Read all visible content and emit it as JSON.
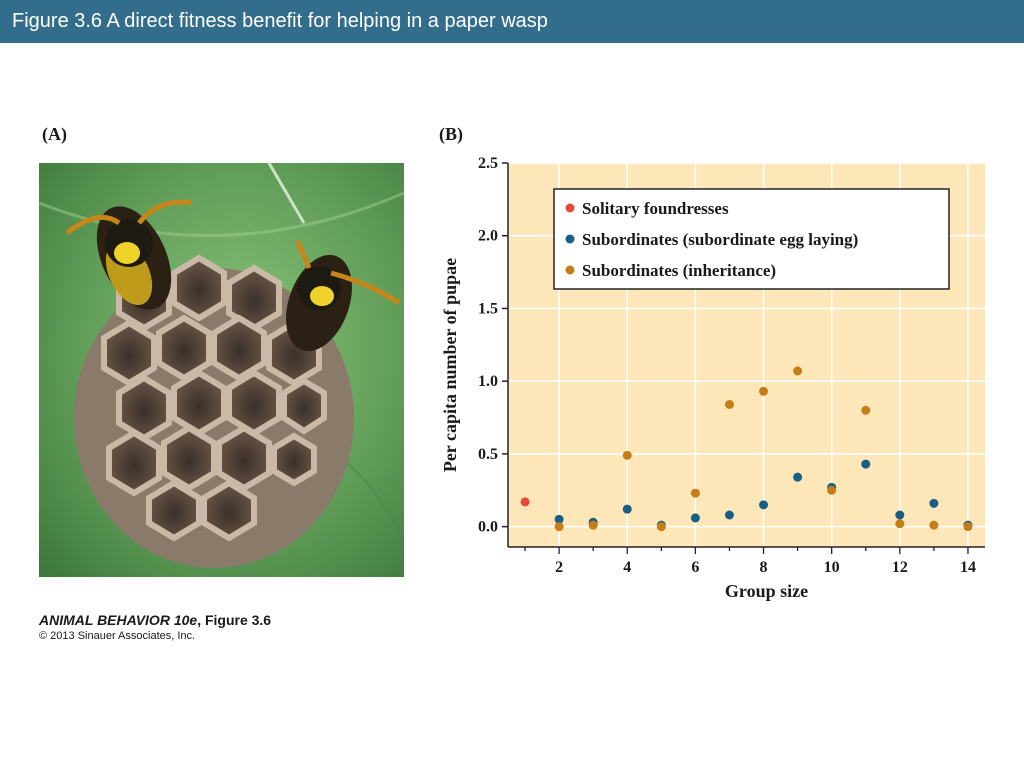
{
  "header": {
    "title": "Figure 3.6  A direct fitness benefit for helping in a paper wasp"
  },
  "panels": {
    "a_label": "(A)",
    "b_label": "(B)"
  },
  "credit": {
    "book": "ANIMAL BEHAVIOR 10e",
    "figure": ", Figure 3.6",
    "copyright": "© 2013 Sinauer Associates, Inc."
  },
  "colors": {
    "title_bar": "#336d8c",
    "plot_background": "#fde6b8",
    "solitary": "#e8473a",
    "subordinate_egg": "#175f86",
    "inheritance": "#c57d18"
  },
  "chart_data": {
    "type": "scatter",
    "xlabel": "Group size",
    "ylabel": "Per capita number of pupae",
    "xlim": [
      0.5,
      14.5
    ],
    "ylim": [
      -0.14,
      2.5
    ],
    "x_ticks": [
      2,
      4,
      6,
      8,
      10,
      12,
      14
    ],
    "y_ticks": [
      0.0,
      0.5,
      1.0,
      1.5,
      2.0,
      2.5
    ],
    "y_tick_labels": [
      "0.0",
      "0.5",
      "1.0",
      "1.5",
      "2.0",
      "2.5"
    ],
    "grid": true,
    "legend_position": "top-right",
    "series": [
      {
        "name": "Solitary foundresses",
        "color": "#e8473a",
        "points": [
          [
            1,
            0.17
          ]
        ]
      },
      {
        "name": "Subordinates (subordinate egg laying)",
        "color": "#175f86",
        "points": [
          [
            2,
            0.05
          ],
          [
            3,
            0.03
          ],
          [
            4,
            0.12
          ],
          [
            5,
            0.01
          ],
          [
            6,
            0.06
          ],
          [
            7,
            0.08
          ],
          [
            8,
            0.15
          ],
          [
            9,
            0.34
          ],
          [
            10,
            0.27
          ],
          [
            11,
            0.43
          ],
          [
            12,
            0.08
          ],
          [
            13,
            0.16
          ],
          [
            14,
            0.01
          ]
        ]
      },
      {
        "name": "Subordinates (inheritance)",
        "color": "#c57d18",
        "points": [
          [
            2,
            0.0
          ],
          [
            3,
            0.01
          ],
          [
            4,
            0.49
          ],
          [
            5,
            0.0
          ],
          [
            6,
            0.23
          ],
          [
            7,
            0.84
          ],
          [
            8,
            0.93
          ],
          [
            9,
            1.07
          ],
          [
            10,
            0.25
          ],
          [
            11,
            0.8
          ],
          [
            12,
            0.02
          ],
          [
            13,
            0.01
          ],
          [
            14,
            0.0
          ]
        ]
      }
    ]
  }
}
